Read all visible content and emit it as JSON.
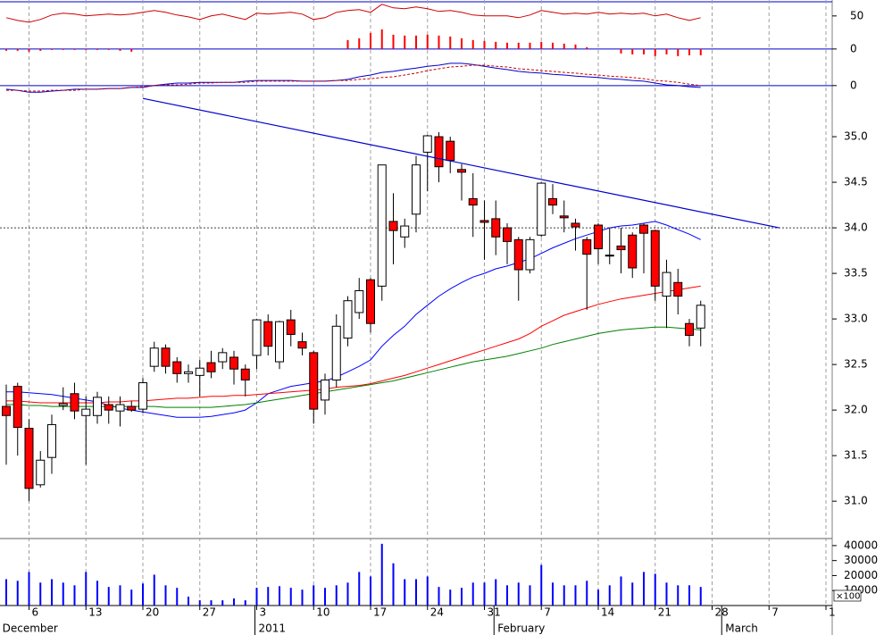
{
  "chart_data": {
    "type": "candlestick",
    "xlim": [
      -0.549,
      72.55
    ],
    "xticks": [
      {
        "value": 2,
        "label": "6"
      },
      {
        "value": 7,
        "label": "13"
      },
      {
        "value": 12,
        "label": "20"
      },
      {
        "value": 17,
        "label": "27"
      },
      {
        "value": 22,
        "label": "3"
      },
      {
        "value": 27,
        "label": "10"
      },
      {
        "value": 32,
        "label": "17"
      },
      {
        "value": 37,
        "label": "24"
      },
      {
        "value": 42,
        "label": "31"
      },
      {
        "value": 47,
        "label": "7"
      },
      {
        "value": 52,
        "label": "14"
      },
      {
        "value": 57,
        "label": "21"
      },
      {
        "value": 62,
        "label": "28"
      },
      {
        "value": 67,
        "label": "7"
      },
      {
        "value": 72,
        "label": "1"
      }
    ],
    "month_labels": [
      {
        "value": -0.5,
        "label": "December"
      },
      {
        "value": 22,
        "label": "2011"
      },
      {
        "value": 43,
        "label": "February"
      },
      {
        "value": 63,
        "label": "March"
      }
    ],
    "grid": true,
    "up_color": "#ffffff",
    "down_color": "#ff0000",
    "ylim": [
      30.59,
      35.52
    ],
    "yticks": [
      {
        "value": 31,
        "label": "31.0"
      },
      31.5,
      {
        "value": 32,
        "label": "32.0"
      },
      32.5,
      {
        "value": 33,
        "label": "33.0"
      },
      33.5,
      {
        "value": 34,
        "label": "34.0"
      },
      34.5,
      {
        "value": 35,
        "label": "35.0"
      }
    ],
    "open": [
      32.04,
      32.26,
      31.8,
      31.18,
      31.48,
      32.05,
      32.18,
      31.94,
      31.94,
      32.06,
      31.99,
      32.04,
      32.01,
      32.48,
      32.68,
      32.53,
      32.4,
      32.38,
      32.52,
      32.53,
      32.58,
      32.45,
      32.6,
      32.97,
      32.53,
      32.99,
      32.75,
      32.63,
      32.11,
      32.33,
      32.79,
      33.07,
      33.43,
      33.36,
      34.07,
      33.9,
      34.15,
      34.83,
      35.0,
      34.95,
      34.64,
      34.32,
      34.08,
      34.1,
      34.0,
      33.87,
      33.54,
      33.92,
      34.32,
      34.13,
      34.05,
      33.87,
      34.03,
      33.7,
      33.8,
      33.92,
      34.03,
      33.97,
      33.25,
      33.4,
      32.95,
      32.9
    ],
    "high": [
      32.28,
      32.3,
      31.9,
      31.55,
      31.95,
      32.25,
      32.3,
      32.15,
      32.2,
      32.15,
      32.15,
      32.1,
      32.35,
      32.75,
      32.72,
      32.58,
      32.5,
      32.55,
      32.65,
      32.68,
      32.65,
      32.5,
      33.0,
      33.05,
      32.98,
      33.1,
      32.85,
      32.65,
      32.4,
      33.05,
      33.25,
      33.45,
      33.45,
      34.69,
      34.38,
      34.1,
      34.79,
      35.02,
      35.05,
      35.0,
      34.7,
      34.6,
      34.3,
      34.3,
      34.05,
      33.9,
      33.9,
      34.5,
      34.48,
      34.3,
      34.1,
      33.9,
      34.05,
      34.0,
      34.0,
      33.95,
      34.05,
      33.98,
      33.65,
      33.55,
      33.0,
      33.2
    ],
    "low": [
      31.4,
      31.5,
      31.0,
      31.15,
      31.3,
      32.0,
      31.9,
      31.4,
      31.85,
      31.85,
      31.82,
      31.98,
      31.97,
      32.42,
      32.4,
      32.3,
      32.3,
      32.15,
      32.35,
      32.45,
      32.28,
      32.15,
      32.45,
      32.6,
      32.45,
      32.7,
      32.6,
      31.85,
      31.95,
      32.25,
      32.7,
      33.0,
      32.85,
      33.2,
      33.6,
      33.78,
      33.95,
      34.4,
      34.5,
      34.6,
      34.3,
      33.9,
      33.65,
      33.7,
      33.6,
      33.2,
      33.5,
      33.9,
      34.15,
      33.95,
      33.75,
      33.1,
      33.6,
      33.6,
      33.5,
      33.45,
      33.5,
      33.2,
      32.9,
      33.05,
      32.7,
      32.7
    ],
    "close": [
      31.94,
      31.81,
      31.14,
      31.45,
      31.84,
      32.07,
      31.99,
      32.01,
      32.14,
      32.0,
      32.06,
      32.0,
      32.3,
      32.68,
      32.48,
      32.4,
      32.42,
      32.46,
      32.42,
      32.63,
      32.45,
      32.33,
      32.99,
      32.7,
      32.97,
      32.83,
      32.68,
      32.01,
      32.33,
      32.92,
      33.2,
      33.31,
      32.95,
      34.69,
      33.97,
      34.02,
      34.69,
      35.01,
      34.67,
      34.74,
      34.61,
      34.25,
      34.06,
      33.9,
      33.85,
      33.54,
      33.87,
      34.49,
      34.25,
      34.11,
      34.01,
      33.71,
      33.77,
      33.69,
      33.76,
      33.56,
      33.94,
      33.36,
      33.51,
      33.25,
      32.82,
      33.15
    ],
    "series": [
      {
        "color": "#0000ff",
        "values": [
          32.2,
          32.2,
          32.19,
          32.18,
          32.17,
          32.15,
          32.13,
          32.11,
          32.09,
          32.05,
          32.02,
          32.0,
          31.98,
          31.96,
          31.94,
          31.92,
          31.92,
          31.92,
          31.93,
          31.95,
          31.97,
          32.0,
          32.08,
          32.18,
          32.22,
          32.26,
          32.28,
          32.3,
          32.32,
          32.36,
          32.42,
          32.48,
          32.55,
          32.7,
          32.82,
          32.92,
          33.05,
          33.15,
          33.25,
          33.33,
          33.4,
          33.46,
          33.5,
          33.55,
          33.58,
          33.62,
          33.66,
          33.72,
          33.78,
          33.83,
          33.88,
          33.92,
          33.96,
          34.0,
          34.02,
          34.03,
          34.05,
          34.07,
          34.03,
          33.98,
          33.93,
          33.87
        ]
      },
      {
        "color": "#ff0000",
        "values": [
          32.1,
          32.1,
          32.09,
          32.08,
          32.08,
          32.08,
          32.08,
          32.08,
          32.08,
          32.09,
          32.09,
          32.1,
          32.1,
          32.11,
          32.12,
          32.13,
          32.13,
          32.14,
          32.15,
          32.15,
          32.16,
          32.16,
          32.17,
          32.18,
          32.19,
          32.2,
          32.21,
          32.22,
          32.23,
          32.25,
          32.26,
          32.27,
          32.29,
          32.32,
          32.35,
          32.38,
          32.42,
          32.46,
          32.5,
          32.54,
          32.58,
          32.62,
          32.66,
          32.7,
          32.74,
          32.78,
          32.84,
          32.92,
          32.98,
          33.04,
          33.08,
          33.12,
          33.16,
          33.19,
          33.22,
          33.24,
          33.26,
          33.28,
          33.3,
          33.32,
          33.34,
          33.36
        ]
      },
      {
        "color": "#008000",
        "values": [
          32.06,
          32.06,
          32.05,
          32.05,
          32.04,
          32.04,
          32.04,
          32.04,
          32.04,
          32.04,
          32.04,
          32.04,
          32.04,
          32.04,
          32.03,
          32.03,
          32.03,
          32.03,
          32.03,
          32.04,
          32.05,
          32.06,
          32.08,
          32.1,
          32.12,
          32.14,
          32.16,
          32.18,
          32.2,
          32.22,
          32.24,
          32.26,
          32.28,
          32.3,
          32.32,
          32.35,
          32.38,
          32.41,
          32.44,
          32.47,
          32.5,
          32.53,
          32.55,
          32.57,
          32.59,
          32.62,
          32.65,
          32.68,
          32.72,
          32.75,
          32.78,
          32.81,
          32.84,
          32.86,
          32.88,
          32.89,
          32.9,
          32.91,
          32.91,
          32.9,
          32.89,
          32.88
        ]
      }
    ],
    "reference_line": 34.0,
    "trendline": {
      "color": "#0000cc",
      "x": [
        12,
        67.9
      ],
      "y": [
        35.42,
        34.0
      ]
    },
    "volume": {
      "color": "#0000ff",
      "ylim": [
        0,
        44700
      ],
      "yticks": [
        10000,
        20000,
        30000,
        40000
      ],
      "unit_label": "×100",
      "values": [
        17600,
        16500,
        22400,
        15300,
        17600,
        15300,
        13500,
        22400,
        16500,
        12400,
        13500,
        10600,
        14700,
        20600,
        13500,
        11800,
        5900,
        3500,
        3500,
        3500,
        4700,
        3500,
        11800,
        12400,
        12900,
        11800,
        10600,
        13500,
        11800,
        13500,
        15300,
        22400,
        19400,
        41200,
        28200,
        17600,
        17600,
        19400,
        12400,
        10600,
        11800,
        15300,
        15300,
        17600,
        13500,
        15300,
        13500,
        27100,
        15300,
        13500,
        13500,
        16500,
        10600,
        13500,
        19400,
        15300,
        22400,
        21200,
        15300,
        13500,
        13500,
        12400
      ]
    },
    "oscillator": {
      "color": "#cc0000",
      "bar_color": "#ff0000",
      "ylim": [
        -11,
        71.4
      ],
      "yticks": [
        0,
        50
      ],
      "values": [
        47.3,
        43.2,
        40.5,
        44.6,
        51.4,
        54.1,
        52.7,
        50.0,
        51.4,
        52.7,
        51.4,
        52.7,
        55.4,
        58.1,
        55.4,
        51.4,
        48.6,
        44.6,
        50.0,
        52.7,
        48.6,
        44.6,
        54.1,
        52.7,
        54.1,
        55.4,
        52.7,
        44.6,
        47.3,
        55.4,
        58.1,
        59.5,
        55.4,
        67.6,
        62.2,
        60.8,
        63.5,
        60.8,
        56.8,
        58.1,
        55.4,
        51.4,
        50.0,
        50.0,
        50.0,
        47.3,
        51.4,
        58.1,
        55.4,
        52.7,
        54.1,
        52.7,
        55.4,
        52.7,
        54.1,
        52.7,
        54.1,
        50.0,
        52.7,
        47.3,
        43.2,
        47.3
      ],
      "bars": [
        -2.7,
        -2.7,
        -4.1,
        -2.7,
        -1.4,
        -1.4,
        -1.4,
        -1.4,
        -1.4,
        -1.4,
        -2.7,
        -4.1,
        0,
        0,
        0,
        0,
        0,
        0,
        0,
        0,
        0,
        0,
        0,
        0,
        0,
        0,
        0,
        0,
        0,
        0,
        13.5,
        16.2,
        24.3,
        29.7,
        21.6,
        20.3,
        20.3,
        21.6,
        20.3,
        18.9,
        16.2,
        13.5,
        12.2,
        10.8,
        9.5,
        9.5,
        9.5,
        10.8,
        9.5,
        8.1,
        6.8,
        2.7,
        0,
        0,
        -6.8,
        -8.1,
        -8.1,
        -10.8,
        -8.1,
        -10.8,
        -9.5,
        -9.5
      ]
    },
    "macd": {
      "ylim": [
        -0.2,
        1.0
      ],
      "yticks": [
        0
      ],
      "series": [
        {
          "color": "#0000cc",
          "values": [
            -0.1,
            -0.13,
            -0.18,
            -0.18,
            -0.15,
            -0.13,
            -0.1,
            -0.1,
            -0.1,
            -0.08,
            -0.08,
            -0.05,
            -0.05,
            0.0,
            0.04,
            0.07,
            0.07,
            0.09,
            0.09,
            0.09,
            0.09,
            0.12,
            0.14,
            0.14,
            0.14,
            0.14,
            0.12,
            0.12,
            0.12,
            0.14,
            0.17,
            0.24,
            0.29,
            0.36,
            0.39,
            0.44,
            0.48,
            0.53,
            0.56,
            0.61,
            0.61,
            0.58,
            0.53,
            0.48,
            0.44,
            0.39,
            0.36,
            0.34,
            0.31,
            0.29,
            0.26,
            0.24,
            0.22,
            0.19,
            0.17,
            0.14,
            0.12,
            0.07,
            0.02,
            0.0,
            -0.03,
            -0.05
          ]
        },
        {
          "color": "#cc0000",
          "dashed": true,
          "values": [
            -0.13,
            -0.13,
            -0.15,
            -0.15,
            -0.13,
            -0.13,
            -0.13,
            -0.1,
            -0.1,
            -0.08,
            -0.08,
            -0.05,
            -0.03,
            0.0,
            0.02,
            0.02,
            0.04,
            0.07,
            0.07,
            0.09,
            0.09,
            0.09,
            0.12,
            0.12,
            0.12,
            0.12,
            0.12,
            0.12,
            0.12,
            0.14,
            0.14,
            0.17,
            0.19,
            0.22,
            0.24,
            0.29,
            0.34,
            0.41,
            0.46,
            0.51,
            0.53,
            0.56,
            0.56,
            0.53,
            0.51,
            0.46,
            0.44,
            0.41,
            0.39,
            0.36,
            0.34,
            0.31,
            0.29,
            0.26,
            0.24,
            0.22,
            0.19,
            0.14,
            0.12,
            0.09,
            0.04,
            0.0
          ]
        }
      ]
    }
  }
}
